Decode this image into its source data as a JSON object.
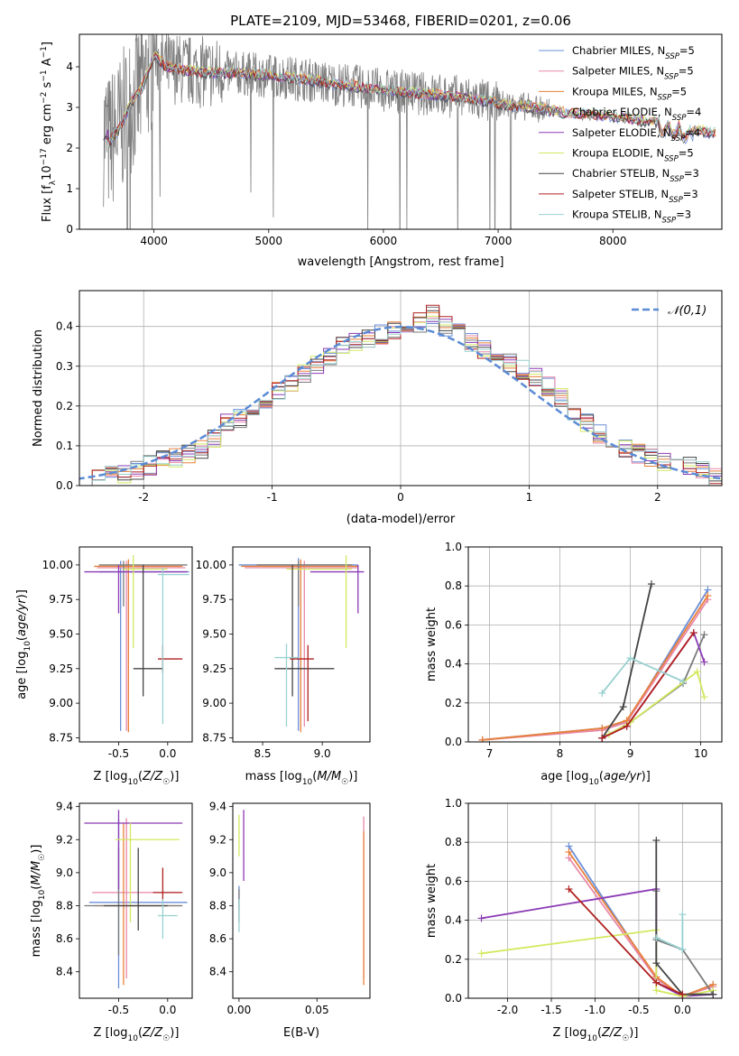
{
  "title": "PLATE=2109, MJD=53468, FIBERID=0201, z=0.06",
  "colors": [
    "#6a8fd8",
    "#e888a8",
    "#e8803a",
    "#7a7a7a",
    "#8b3ab5",
    "#d4e860",
    "#444444",
    "#b02020",
    "#99d0d0"
  ],
  "model_names": [
    "Chabrier MILES, N_SSP=5",
    "Salpeter MILES, N_SSP=5",
    "Kroupa MILES, N_SSP=5",
    "Chabrier ELODIE, N_SSP=4",
    "Salpeter ELODIE, N_SSP=4",
    "Kroupa ELODIE, N_SSP=5",
    "Chabrier STELIB, N_SSP=3",
    "Salpeter STELIB, N_SSP=3",
    "Kroupa STELIB, N_SSP=3"
  ],
  "chart_data": [
    {
      "id": "spectrum",
      "type": "line",
      "xlabel": "wavelength [Angstrom, rest frame]",
      "ylabel": "Flux [f_λ 10^-17 erg cm^-2 s^-1 A^-1]",
      "xlim": [
        3350,
        8950
      ],
      "ylim": [
        0,
        4.8
      ],
      "xticks": [
        4000,
        5000,
        6000,
        7000,
        8000
      ],
      "yticks": [
        0,
        1,
        2,
        3,
        4
      ],
      "legend_position": "top-right",
      "continuum_x": [
        3600,
        3700,
        3800,
        3900,
        4000,
        4100,
        4300,
        4500,
        4700,
        4900,
        5100,
        5300,
        5500,
        5700,
        5900,
        6100,
        6300,
        6500,
        6700,
        6900,
        7100,
        7300,
        7500,
        7700,
        7900,
        8100,
        8300,
        8500,
        8700,
        8900
      ],
      "continuum_y": [
        2.1,
        2.5,
        3.1,
        3.5,
        4.3,
        4.0,
        3.9,
        3.85,
        3.85,
        3.8,
        3.75,
        3.7,
        3.6,
        3.55,
        3.45,
        3.4,
        3.35,
        3.3,
        3.25,
        3.15,
        3.05,
        3.0,
        2.9,
        2.85,
        2.8,
        2.75,
        2.65,
        2.6,
        2.45,
        2.35
      ],
      "series": [
        {
          "name": "Chabrier MILES, N_SSP=5"
        },
        {
          "name": "Salpeter MILES, N_SSP=5"
        },
        {
          "name": "Kroupa MILES, N_SSP=5"
        },
        {
          "name": "Chabrier ELODIE, N_SSP=4"
        },
        {
          "name": "Salpeter ELODIE, N_SSP=4"
        },
        {
          "name": "Kroupa ELODIE, N_SSP=5"
        },
        {
          "name": "Chabrier STELIB, N_SSP=3"
        },
        {
          "name": "Salpeter STELIB, N_SSP=3"
        },
        {
          "name": "Kroupa STELIB, N_SSP=3"
        }
      ]
    },
    {
      "id": "residuals",
      "type": "histogram",
      "xlabel": "(data-model)/error",
      "ylabel": "Normed distribution",
      "xlim": [
        -2.5,
        2.5
      ],
      "ylim": [
        0,
        0.49
      ],
      "xticks": [
        -2,
        -1,
        0,
        1,
        2
      ],
      "yticks": [
        0.0,
        0.1,
        0.2,
        0.3,
        0.4
      ],
      "grid": true,
      "legend_position": "top-right",
      "reference_curve": {
        "name": "𝒩(0,1)",
        "mean": 0,
        "sd": 1,
        "style": "dashed"
      },
      "bins": [
        -2.5,
        -2.4,
        -2.3,
        -2.2,
        -2.1,
        -2.0,
        -1.9,
        -1.8,
        -1.7,
        -1.6,
        -1.5,
        -1.4,
        -1.3,
        -1.2,
        -1.1,
        -1.0,
        -0.9,
        -0.8,
        -0.7,
        -0.6,
        -0.5,
        -0.4,
        -0.3,
        -0.2,
        -0.1,
        0.0,
        0.1,
        0.2,
        0.3,
        0.4,
        0.5,
        0.6,
        0.7,
        0.8,
        0.9,
        1.0,
        1.1,
        1.2,
        1.3,
        1.4,
        1.5,
        1.6,
        1.7,
        1.8,
        1.9,
        2.0,
        2.1,
        2.2,
        2.3,
        2.4,
        2.5
      ],
      "base_density": [
        0.02,
        0.025,
        0.03,
        0.03,
        0.04,
        0.05,
        0.07,
        0.07,
        0.08,
        0.09,
        0.12,
        0.16,
        0.17,
        0.19,
        0.2,
        0.24,
        0.26,
        0.28,
        0.3,
        0.32,
        0.35,
        0.36,
        0.37,
        0.38,
        0.39,
        0.4,
        0.41,
        0.43,
        0.4,
        0.39,
        0.36,
        0.34,
        0.33,
        0.31,
        0.29,
        0.27,
        0.25,
        0.22,
        0.19,
        0.16,
        0.13,
        0.11,
        0.09,
        0.08,
        0.07,
        0.06,
        0.05,
        0.05,
        0.04,
        0.02
      ]
    },
    {
      "id": "age_vs_Z",
      "type": "errorbar",
      "xlabel": "Z [log10(Z/Z⊙)]",
      "ylabel": "age [log10(age/yr)]",
      "xlim": [
        -0.9,
        0.25
      ],
      "ylim": [
        8.72,
        10.13
      ],
      "xticks": [
        -0.5,
        0.0
      ],
      "yticks": [
        8.75,
        9.0,
        9.25,
        9.5,
        9.75,
        10.0
      ],
      "points": [
        {
          "c": 0,
          "x": -0.48,
          "xerr": [
            0.22,
            0.7
          ],
          "y": 9.95,
          "yerr": [
            1.15,
            0.08
          ]
        },
        {
          "c": 1,
          "x": -0.42,
          "xerr": [
            0.3,
            0.6
          ],
          "y": 9.98,
          "yerr": [
            1.18,
            0.05
          ]
        },
        {
          "c": 2,
          "x": -0.4,
          "xerr": [
            0.35,
            0.55
          ],
          "y": 9.99,
          "yerr": [
            1.2,
            0.05
          ]
        },
        {
          "c": 3,
          "x": -0.45,
          "xerr": [
            0.25,
            0.65
          ],
          "y": 10.0,
          "yerr": [
            0.3,
            0.03
          ]
        },
        {
          "c": 4,
          "x": -0.5,
          "xerr": [
            0.35,
            0.7
          ],
          "y": 9.95,
          "yerr": [
            0.3,
            0.05
          ]
        },
        {
          "c": 5,
          "x": -0.35,
          "xerr": [
            0.1,
            0.35
          ],
          "y": 9.97,
          "yerr": [
            0.57,
            0.1
          ]
        },
        {
          "c": 6,
          "x": -0.25,
          "xerr": [
            0.1,
            0.2
          ],
          "y": 9.25,
          "yerr": [
            0.2,
            0.75
          ]
        },
        {
          "c": 7,
          "x": -0.05,
          "xerr": [
            0.05,
            0.2
          ],
          "y": 9.32,
          "yerr": [
            0.1,
            0.1
          ]
        },
        {
          "c": 8,
          "x": -0.05,
          "xerr": [
            0.05,
            0.27
          ],
          "y": 9.93,
          "yerr": [
            1.08,
            0.05
          ]
        }
      ]
    },
    {
      "id": "age_vs_mass",
      "type": "errorbar",
      "xlabel": "mass [log10(M/M⊙)]",
      "ylabel": "",
      "xlim": [
        8.25,
        9.4
      ],
      "ylim": [
        8.72,
        10.13
      ],
      "xticks": [
        8.5,
        9.0
      ],
      "yticks": [
        8.75,
        9.0,
        9.25,
        9.5,
        9.75,
        10.0
      ],
      "points": [
        {
          "c": 0,
          "x": 8.8,
          "xerr": [
            0.5,
            0.5
          ],
          "y": 10.0,
          "yerr": [
            1.2,
            0.05
          ]
        },
        {
          "c": 1,
          "x": 8.85,
          "xerr": [
            0.5,
            0.45
          ],
          "y": 9.98,
          "yerr": [
            1.15,
            0.05
          ]
        },
        {
          "c": 2,
          "x": 8.82,
          "xerr": [
            0.5,
            0.48
          ],
          "y": 9.99,
          "yerr": [
            1.2,
            0.05
          ]
        },
        {
          "c": 3,
          "x": 8.8,
          "xerr": [
            0.35,
            0.45
          ],
          "y": 10.0,
          "yerr": [
            0.3,
            0.03
          ]
        },
        {
          "c": 4,
          "x": 9.3,
          "xerr": [
            0.4,
            0.05
          ],
          "y": 9.95,
          "yerr": [
            0.3,
            0.05
          ]
        },
        {
          "c": 5,
          "x": 9.2,
          "xerr": [
            0.5,
            0.05
          ],
          "y": 9.97,
          "yerr": [
            0.57,
            0.1
          ]
        },
        {
          "c": 6,
          "x": 8.75,
          "xerr": [
            0.15,
            0.35
          ],
          "y": 9.25,
          "yerr": [
            0.2,
            0.75
          ]
        },
        {
          "c": 7,
          "x": 8.88,
          "xerr": [
            0.15,
            0.05
          ],
          "y": 9.32,
          "yerr": [
            0.45,
            0.1
          ]
        },
        {
          "c": 8,
          "x": 8.7,
          "xerr": [
            0.1,
            0.1
          ],
          "y": 9.33,
          "yerr": [
            0.5,
            0.1
          ]
        }
      ]
    },
    {
      "id": "massweight_vs_age",
      "type": "line",
      "xlabel": "age [log10(age/yr)]",
      "ylabel": "mass weight",
      "xlim": [
        6.7,
        10.3
      ],
      "ylim": [
        0,
        1.0
      ],
      "xticks": [
        7,
        8,
        9,
        10
      ],
      "yticks": [
        0.0,
        0.2,
        0.4,
        0.6,
        0.8,
        1.0
      ],
      "grid": true,
      "series_points": [
        {
          "c": 0,
          "x": [
            6.9,
            8.6,
            8.95,
            10.1
          ],
          "y": [
            0.01,
            0.07,
            0.1,
            0.78
          ]
        },
        {
          "c": 1,
          "x": [
            6.9,
            8.6,
            8.95,
            10.1
          ],
          "y": [
            0.01,
            0.06,
            0.1,
            0.73
          ]
        },
        {
          "c": 2,
          "x": [
            6.9,
            8.6,
            8.95,
            10.1
          ],
          "y": [
            0.01,
            0.07,
            0.11,
            0.75
          ]
        },
        {
          "c": 3,
          "x": [
            8.6,
            9.0,
            9.75,
            10.05
          ],
          "y": [
            0.02,
            0.1,
            0.3,
            0.55
          ]
        },
        {
          "c": 4,
          "x": [
            8.6,
            8.95,
            9.9,
            10.05
          ],
          "y": [
            0.02,
            0.08,
            0.56,
            0.41
          ]
        },
        {
          "c": 5,
          "x": [
            8.7,
            9.0,
            9.95,
            10.05
          ],
          "y": [
            0.04,
            0.1,
            0.36,
            0.23
          ]
        },
        {
          "c": 6,
          "x": [
            8.6,
            8.9,
            9.3
          ],
          "y": [
            0.02,
            0.18,
            0.81
          ]
        },
        {
          "c": 7,
          "x": [
            8.6,
            8.95,
            9.9
          ],
          "y": [
            0.02,
            0.08,
            0.56
          ]
        },
        {
          "c": 8,
          "x": [
            8.6,
            9.0,
            9.75
          ],
          "y": [
            0.25,
            0.43,
            0.31
          ]
        }
      ]
    },
    {
      "id": "mass_vs_Z",
      "type": "errorbar",
      "xlabel": "Z [log10(Z/Z⊙)]",
      "ylabel": "mass [log10(M/M⊙)]",
      "xlim": [
        -0.9,
        0.25
      ],
      "ylim": [
        8.24,
        9.42
      ],
      "xticks": [
        -0.5,
        0.0
      ],
      "yticks": [
        8.4,
        8.6,
        8.8,
        9.0,
        9.2,
        9.4
      ],
      "points": [
        {
          "c": 0,
          "x": -0.5,
          "xerr": [
            0.3,
            0.7
          ],
          "y": 8.82,
          "yerr": [
            0.52,
            0.5
          ]
        },
        {
          "c": 1,
          "x": -0.42,
          "xerr": [
            0.35,
            0.55
          ],
          "y": 8.88,
          "yerr": [
            0.52,
            0.45
          ]
        },
        {
          "c": 2,
          "x": -0.45,
          "xerr": [
            0.3,
            0.6
          ],
          "y": 8.8,
          "yerr": [
            0.48,
            0.5
          ]
        },
        {
          "c": 3,
          "x": -0.5,
          "xerr": [
            0.35,
            0.65
          ],
          "y": 8.8,
          "yerr": [
            0.3,
            0.35
          ]
        },
        {
          "c": 4,
          "x": -0.5,
          "xerr": [
            0.35,
            0.65
          ],
          "y": 9.3,
          "yerr": [
            0.4,
            0.08
          ]
        },
        {
          "c": 5,
          "x": -0.38,
          "xerr": [
            0.15,
            0.5
          ],
          "y": 9.2,
          "yerr": [
            0.5,
            0.1
          ]
        },
        {
          "c": 6,
          "x": -0.3,
          "xerr": [
            0.35,
            0.3
          ],
          "y": 8.8,
          "yerr": [
            0.15,
            0.35
          ]
        },
        {
          "c": 7,
          "x": -0.05,
          "xerr": [
            0.1,
            0.2
          ],
          "y": 8.88,
          "yerr": [
            0.05,
            0.15
          ]
        },
        {
          "c": 8,
          "x": -0.05,
          "xerr": [
            0.05,
            0.15
          ],
          "y": 8.74,
          "yerr": [
            0.14,
            0.1
          ]
        }
      ]
    },
    {
      "id": "mass_vs_EBV",
      "type": "errorbar",
      "xlabel": "E(B-V)",
      "ylabel": "",
      "xlim": [
        -0.004,
        0.084
      ],
      "ylim": [
        8.24,
        9.42
      ],
      "xticks": [
        0.0,
        0.05
      ],
      "yticks": [
        8.4,
        8.6,
        8.8,
        9.0,
        9.2,
        9.4
      ],
      "points": [
        {
          "c": 0,
          "x": 0.0,
          "xerr": [
            0,
            0
          ],
          "y": 8.82,
          "yerr": [
            0.05,
            0.1
          ]
        },
        {
          "c": 4,
          "x": 0.003,
          "xerr": [
            0,
            0
          ],
          "y": 9.3,
          "yerr": [
            0.35,
            0.08
          ]
        },
        {
          "c": 5,
          "x": 0.0,
          "xerr": [
            0,
            0
          ],
          "y": 9.2,
          "yerr": [
            0.1,
            0.15
          ]
        },
        {
          "c": 3,
          "x": 0.0,
          "xerr": [
            0,
            0
          ],
          "y": 8.8,
          "yerr": [
            0.1,
            0.1
          ]
        },
        {
          "c": 8,
          "x": 0.0,
          "xerr": [
            0,
            0
          ],
          "y": 8.74,
          "yerr": [
            0.1,
            0.1
          ]
        },
        {
          "c": 1,
          "x": 0.08,
          "xerr": [
            0,
            0
          ],
          "y": 8.88,
          "yerr": [
            0.52,
            0.46
          ]
        },
        {
          "c": 2,
          "x": 0.08,
          "xerr": [
            0,
            0
          ],
          "y": 8.8,
          "yerr": [
            0.48,
            0.45
          ]
        }
      ]
    },
    {
      "id": "massweight_vs_Z",
      "type": "line",
      "xlabel": "Z [log10(Z/Z⊙)]",
      "ylabel": "mass weight",
      "xlim": [
        -2.45,
        0.45
      ],
      "ylim": [
        0,
        1.0
      ],
      "xticks": [
        -2.0,
        -1.5,
        -1.0,
        -0.5,
        0.0
      ],
      "yticks": [
        0.0,
        0.2,
        0.4,
        0.6,
        0.8,
        1.0
      ],
      "grid": true,
      "series_points": [
        {
          "c": 0,
          "x": [
            -1.3,
            -0.3,
            0.0,
            0.35
          ],
          "y": [
            0.78,
            0.1,
            0.01,
            0.07
          ]
        },
        {
          "c": 1,
          "x": [
            -1.3,
            -0.3,
            0.0,
            0.35
          ],
          "y": [
            0.72,
            0.1,
            0.01,
            0.06
          ]
        },
        {
          "c": 2,
          "x": [
            -1.3,
            -0.3,
            0.0,
            0.35
          ],
          "y": [
            0.75,
            0.11,
            0.01,
            0.07
          ]
        },
        {
          "c": 3,
          "x": [
            -0.3,
            -0.3,
            0.0,
            0.35
          ],
          "y": [
            0.55,
            0.3,
            0.25,
            0.02
          ]
        },
        {
          "c": 4,
          "x": [
            -2.3,
            -0.3,
            -0.3,
            0.0,
            0.35
          ],
          "y": [
            0.41,
            0.56,
            0.08,
            0.01,
            0.02
          ]
        },
        {
          "c": 5,
          "x": [
            -2.3,
            -0.3,
            -0.3,
            0.0,
            0.35
          ],
          "y": [
            0.23,
            0.35,
            0.04,
            0.01,
            0.04
          ]
        },
        {
          "c": 6,
          "x": [
            -0.3,
            -0.3,
            0.0,
            0.35
          ],
          "y": [
            0.81,
            0.18,
            0.02,
            0.02
          ]
        },
        {
          "c": 7,
          "x": [
            -1.3,
            -0.3,
            0.0
          ],
          "y": [
            0.56,
            0.08,
            0.02
          ]
        },
        {
          "c": 8,
          "x": [
            -0.3,
            0.0,
            0.0
          ],
          "y": [
            0.31,
            0.25,
            0.43
          ]
        }
      ]
    }
  ]
}
